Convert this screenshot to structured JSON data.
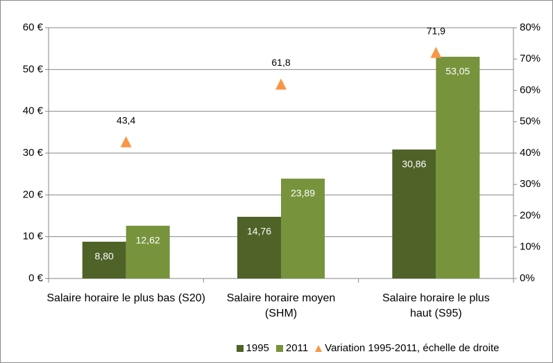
{
  "chart_data": {
    "type": "bar",
    "categories": [
      "Salaire horaire le plus bas (S20)",
      "Salaire horaire moyen (SHM)",
      "Salaire horaire le plus haut (S95)"
    ],
    "series": [
      {
        "name": "1995",
        "color": "#4f6228",
        "values": [
          8.8,
          14.76,
          30.86
        ],
        "value_labels": [
          "8,80",
          "14,76",
          "30,86"
        ]
      },
      {
        "name": "2011",
        "color": "#77933c",
        "values": [
          12.62,
          23.89,
          53.05
        ],
        "value_labels": [
          "12,62",
          "23,89",
          "53,05"
        ]
      },
      {
        "name": "Variation 1995-2011, échelle de droite",
        "color": "#f79646",
        "axis": "y2",
        "marker": "triangle",
        "values": [
          43.4,
          61.8,
          71.9
        ],
        "value_labels": [
          "43,4",
          "61,8",
          "71,9"
        ]
      }
    ],
    "ylim": [
      0,
      60
    ],
    "yticks": [
      {
        "value": 0,
        "label": "0 €"
      },
      {
        "value": 10,
        "label": "10 €"
      },
      {
        "value": 20,
        "label": "20 €"
      },
      {
        "value": 30,
        "label": "30 €"
      },
      {
        "value": 40,
        "label": "40 €"
      },
      {
        "value": 50,
        "label": "50 €"
      },
      {
        "value": 60,
        "label": "60 €"
      }
    ],
    "y2lim": [
      0,
      80
    ],
    "y2ticks": [
      {
        "value": 0,
        "label": "0%"
      },
      {
        "value": 10,
        "label": "10%"
      },
      {
        "value": 20,
        "label": "20%"
      },
      {
        "value": 30,
        "label": "30%"
      },
      {
        "value": 40,
        "label": "40%"
      },
      {
        "value": 50,
        "label": "50%"
      },
      {
        "value": 60,
        "label": "60%"
      },
      {
        "value": 70,
        "label": "70%"
      },
      {
        "value": 80,
        "label": "80%"
      }
    ],
    "grid": true,
    "legend": "bottom"
  }
}
